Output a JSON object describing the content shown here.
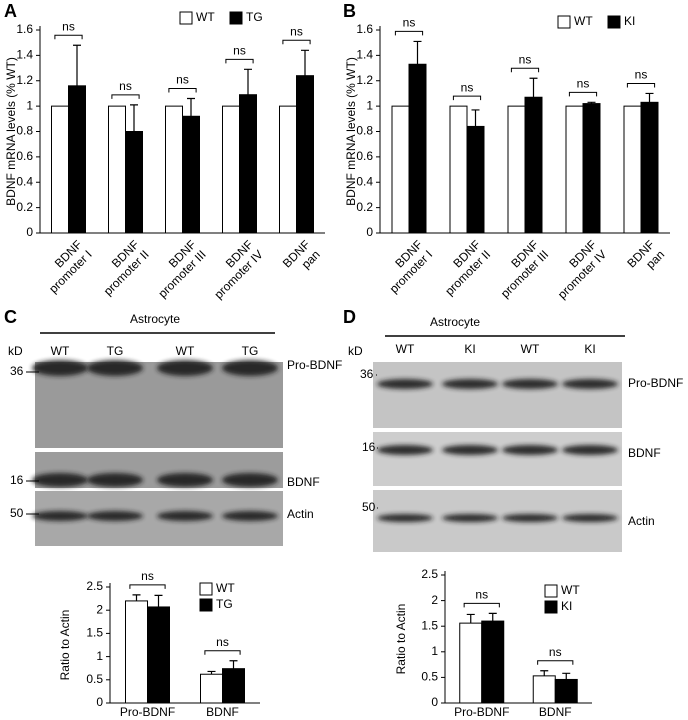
{
  "panel_labels": [
    "A",
    "B",
    "C",
    "D"
  ],
  "chart_data": [
    {
      "type": "bar",
      "ylabel": "BDNF mRNA levels (% WT)",
      "categories": [
        [
          "BDNF",
          "promoter I"
        ],
        [
          "BDNF",
          "promoter II"
        ],
        [
          "BDNF",
          "promoter III"
        ],
        [
          "BDNF",
          "promoter IV"
        ],
        [
          "BDNF",
          "pan"
        ]
      ],
      "series": [
        {
          "name": "WT",
          "color": "#ffffff",
          "values": [
            1,
            1,
            1,
            1,
            1
          ],
          "errors": [
            0,
            0,
            0,
            0,
            0
          ]
        },
        {
          "name": "TG",
          "color": "#000000",
          "values": [
            1.16,
            0.8,
            0.92,
            1.09,
            1.24
          ],
          "errors": [
            0.32,
            0.21,
            0.14,
            0.2,
            0.2
          ]
        }
      ],
      "annotations": [
        "ns",
        "ns",
        "ns",
        "ns",
        "ns"
      ],
      "ylim": [
        0,
        1.6
      ],
      "yticks": [
        0,
        0.2,
        0.4,
        0.6,
        0.8,
        1,
        1.2,
        1.4,
        1.6
      ],
      "grid": false
    },
    {
      "type": "bar",
      "ylabel": "BDNF mRNA levels (% WT)",
      "categories": [
        [
          "BDNF",
          "promoter I"
        ],
        [
          "BDNF",
          "promoter II"
        ],
        [
          "BDNF",
          "promoter III"
        ],
        [
          "BDNF",
          "promoter IV"
        ],
        [
          "BDNF",
          "pan"
        ]
      ],
      "series": [
        {
          "name": "WT",
          "color": "#ffffff",
          "values": [
            1,
            1,
            1,
            1,
            1
          ],
          "errors": [
            0,
            0,
            0,
            0,
            0
          ]
        },
        {
          "name": "KI",
          "color": "#000000",
          "values": [
            1.33,
            0.84,
            1.07,
            1.02,
            1.03
          ],
          "errors": [
            0.18,
            0.13,
            0.15,
            0.01,
            0.07
          ]
        }
      ],
      "annotations": [
        "ns",
        "ns",
        "ns",
        "ns",
        "ns"
      ],
      "ylim": [
        0,
        1.6
      ],
      "yticks": [
        0,
        0.2,
        0.4,
        0.6,
        0.8,
        1,
        1.2,
        1.4,
        1.6
      ],
      "grid": false
    },
    {
      "type": "bar",
      "ylabel": "Ratio to Actin",
      "categories": [
        [
          "Pro-BDNF"
        ],
        [
          "BDNF"
        ]
      ],
      "series": [
        {
          "name": "WT",
          "color": "#ffffff",
          "values": [
            2.2,
            0.62
          ],
          "errors": [
            0.13,
            0.06
          ]
        },
        {
          "name": "TG",
          "color": "#000000",
          "values": [
            2.07,
            0.74
          ],
          "errors": [
            0.25,
            0.17
          ]
        }
      ],
      "annotations": [
        "ns",
        "ns"
      ],
      "ylim": [
        0,
        2.5
      ],
      "yticks": [
        0,
        0.5,
        1,
        1.5,
        2,
        2.5
      ],
      "grid": false
    },
    {
      "type": "bar",
      "ylabel": "Ratio to Actin",
      "categories": [
        [
          "Pro-BDNF"
        ],
        [
          "BDNF"
        ]
      ],
      "series": [
        {
          "name": "WT",
          "color": "#ffffff",
          "values": [
            1.56,
            0.53
          ],
          "errors": [
            0.17,
            0.1
          ]
        },
        {
          "name": "KI",
          "color": "#000000",
          "values": [
            1.6,
            0.46
          ],
          "errors": [
            0.15,
            0.12
          ]
        }
      ],
      "annotations": [
        "ns",
        "ns"
      ],
      "ylim": [
        0,
        2.5
      ],
      "yticks": [
        0,
        0.5,
        1,
        1.5,
        2,
        2.5
      ],
      "grid": false
    }
  ],
  "blots": [
    {
      "title": "Astrocyte",
      "unit": "kD",
      "lanes": [
        "WT",
        "TG",
        "WT",
        "TG"
      ],
      "markers": [
        "36",
        "16",
        "50"
      ],
      "bands": [
        "Pro-BDNF",
        "BDNF",
        "Actin"
      ]
    },
    {
      "title": "Astrocyte",
      "unit": "kD",
      "lanes": [
        "WT",
        "KI",
        "WT",
        "KI"
      ],
      "markers": [
        "36",
        "16",
        "50"
      ],
      "bands": [
        "Pro-BDNF",
        "BDNF",
        "Actin"
      ]
    }
  ]
}
